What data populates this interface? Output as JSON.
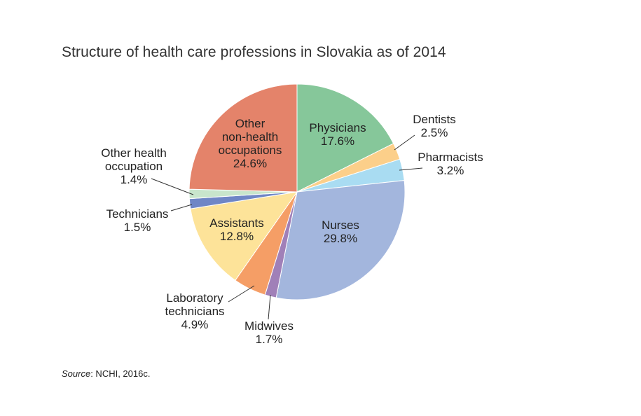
{
  "title": "Structure of health care professions in Slovakia as of 2014",
  "source": {
    "label": "Source",
    "text": ": NCHI, 2016c."
  },
  "chart_data": {
    "type": "pie",
    "title": "Structure of health care professions in Slovakia as of 2014",
    "start": "12 o'clock, clockwise",
    "slices": [
      {
        "label": [
          "Physicians"
        ],
        "value": 17.6,
        "value_text": "17.6%",
        "color": "#86c79a",
        "label_inside": true
      },
      {
        "label": [
          "Dentists"
        ],
        "value": 2.5,
        "value_text": "2.5%",
        "color": "#fccf8a",
        "label_inside": false
      },
      {
        "label": [
          "Pharmacists"
        ],
        "value": 3.2,
        "value_text": "3.2%",
        "color": "#a9dcf2",
        "label_inside": false
      },
      {
        "label": [
          "Nurses"
        ],
        "value": 29.8,
        "value_text": "29.8%",
        "color": "#a3b6dd",
        "label_inside": true
      },
      {
        "label": [
          "Midwives"
        ],
        "value": 1.7,
        "value_text": "1.7%",
        "color": "#a080b8",
        "label_inside": false
      },
      {
        "label": [
          "Laboratory",
          "technicians"
        ],
        "value": 4.9,
        "value_text": "4.9%",
        "color": "#f59e66",
        "label_inside": false
      },
      {
        "label": [
          "Assistants"
        ],
        "value": 12.8,
        "value_text": "12.8%",
        "color": "#fde399",
        "label_inside": true
      },
      {
        "label": [
          "Technicians"
        ],
        "value": 1.5,
        "value_text": "1.5%",
        "color": "#6f86c6",
        "label_inside": false
      },
      {
        "label": [
          "Other health",
          "occupation"
        ],
        "value": 1.4,
        "value_text": "1.4%",
        "color": "#c8e5cc",
        "label_inside": false
      },
      {
        "label": [
          "Other",
          "non-health",
          "occupations"
        ],
        "value": 24.6,
        "value_text": "24.6%",
        "color": "#e4836a",
        "label_inside": true
      }
    ]
  }
}
